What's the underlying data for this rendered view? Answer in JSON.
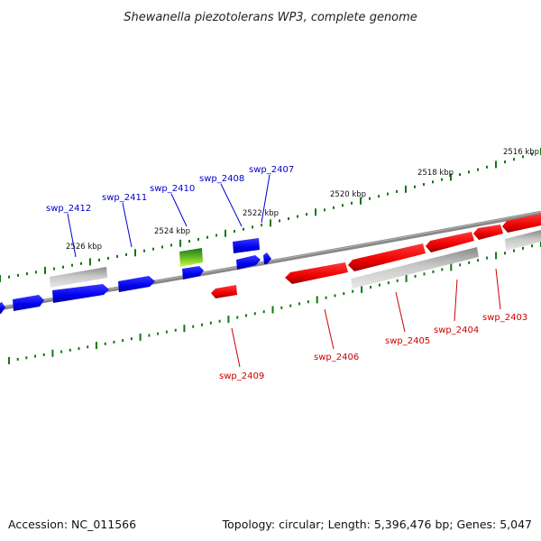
{
  "title": "Shewanella piezotolerans WP3, complete genome",
  "colors": {
    "forward_gene": "#0000ee",
    "reverse_gene": "#ee0000",
    "other_gene": "#b8b8b8",
    "selected_gene": "#66bb22",
    "backbone": "#888888",
    "tick": "#117711",
    "forward_label": "#0000cc",
    "reverse_label": "#cc0000"
  },
  "ticks": {
    "labels": [
      "2516 kbp",
      "2518 kbp",
      "2520 kbp",
      "2522 kbp",
      "2524 kbp",
      "2526 kbp"
    ]
  },
  "genes": {
    "forward": [
      "swp_2412",
      "swp_2411",
      "swp_2410",
      "swp_2408",
      "swp_2407"
    ],
    "reverse": [
      "swp_2409",
      "swp_2406",
      "swp_2405",
      "swp_2404",
      "swp_2403"
    ]
  },
  "footer": {
    "accession": "Accession: NC_011566",
    "topology": "Topology: circular; Length: 5,396,476 bp; Genes: 5,047"
  }
}
